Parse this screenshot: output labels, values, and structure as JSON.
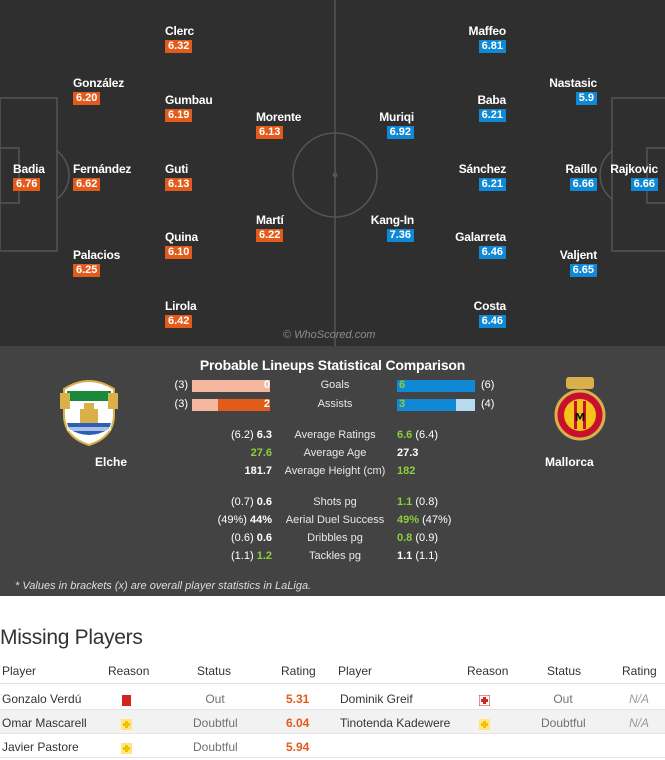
{
  "watermark": "© WhoScored.com",
  "home_lineup": [
    {
      "name": "Clerc",
      "rating": "6.32"
    },
    {
      "name": "González",
      "rating": "6.20"
    },
    {
      "name": "Gumbau",
      "rating": "6.19"
    },
    {
      "name": "Morente",
      "rating": "6.13"
    },
    {
      "name": "Badia",
      "rating": "6.76"
    },
    {
      "name": "Fernández",
      "rating": "6.62"
    },
    {
      "name": "Guti",
      "rating": "6.13"
    },
    {
      "name": "Martí",
      "rating": "6.22"
    },
    {
      "name": "Quina",
      "rating": "6.10"
    },
    {
      "name": "Palacios",
      "rating": "6.25"
    },
    {
      "name": "Lirola",
      "rating": "6.42"
    }
  ],
  "away_lineup": [
    {
      "name": "Maffeo",
      "rating": "6.81"
    },
    {
      "name": "Nastasic",
      "rating": "5.9"
    },
    {
      "name": "Baba",
      "rating": "6.21"
    },
    {
      "name": "Muriqi",
      "rating": "6.92"
    },
    {
      "name": "Sánchez",
      "rating": "6.21"
    },
    {
      "name": "Raíllo",
      "rating": "6.66"
    },
    {
      "name": "Rajkovic",
      "rating": "6.66"
    },
    {
      "name": "Kang-In",
      "rating": "7.36"
    },
    {
      "name": "Galarreta",
      "rating": "6.46"
    },
    {
      "name": "Valjent",
      "rating": "6.65"
    },
    {
      "name": "Costa",
      "rating": "6.46"
    }
  ],
  "comparison": {
    "title": "Probable Lineups Statistical Comparison",
    "home_team": "Elche",
    "away_team": "Mallorca",
    "bars": [
      {
        "label": "Goals",
        "home_value": "0",
        "home_overall": "(3)",
        "away_value": "6",
        "away_overall": "(6)"
      },
      {
        "label": "Assists",
        "home_value": "2",
        "home_overall": "(3)",
        "away_value": "3",
        "away_overall": "(4)"
      }
    ],
    "stats": [
      {
        "label": "Average Ratings",
        "home": "6.3",
        "home_overall": "(6.2)",
        "away": "6.6",
        "away_overall": "(6.4)",
        "better": "away"
      },
      {
        "label": "Average Age",
        "home": "27.6",
        "home_overall": "",
        "away": "27.3",
        "away_overall": "",
        "better": "home"
      },
      {
        "label": "Average Height (cm)",
        "home": "181.7",
        "home_overall": "",
        "away": "182",
        "away_overall": "",
        "better": "away"
      },
      {
        "label": "Shots pg",
        "home": "0.6",
        "home_overall": "(0.7)",
        "away": "1.1",
        "away_overall": "(0.8)",
        "better": "away"
      },
      {
        "label": "Aerial Duel Success",
        "home": "44%",
        "home_overall": "(49%)",
        "away": "49%",
        "away_overall": "(47%)",
        "better": "away"
      },
      {
        "label": "Dribbles pg",
        "home": "0.6",
        "home_overall": "(0.6)",
        "away": "0.8",
        "away_overall": "(0.9)",
        "better": "away"
      },
      {
        "label": "Tackles pg",
        "home": "1.2",
        "home_overall": "(1.1)",
        "away": "1.1",
        "away_overall": "(1.1)",
        "better": "home"
      }
    ],
    "footnote": "* Values in brackets (x) are overall player statistics in LaLiga.",
    "colors": {
      "home_bar": "#e35b1b",
      "home_bar_bg": "#f4b8a0",
      "away_bar": "#0f88d6",
      "away_bar_bg": "#b8daf0",
      "better": "#8ad03c"
    }
  },
  "missing": {
    "title": "Missing Players",
    "headers": [
      "Player",
      "Reason",
      "Status",
      "Rating",
      "Player",
      "Reason",
      "Status",
      "Rating"
    ],
    "home": [
      {
        "player": "Gonzalo Verdú",
        "reason": "red-card-icon",
        "status": "Out",
        "rating": "5.31"
      },
      {
        "player": "Omar Mascarell",
        "reason": "doubtful-icon",
        "status": "Doubtful",
        "rating": "6.04"
      },
      {
        "player": "Javier Pastore",
        "reason": "doubtful-icon",
        "status": "Doubtful",
        "rating": "5.94"
      }
    ],
    "away": [
      {
        "player": "Dominik Greif",
        "reason": "injury-icon",
        "status": "Out",
        "rating": "N/A"
      },
      {
        "player": "Tinotenda Kadewere",
        "reason": "doubtful-icon",
        "status": "Doubtful",
        "rating": "N/A"
      }
    ]
  }
}
